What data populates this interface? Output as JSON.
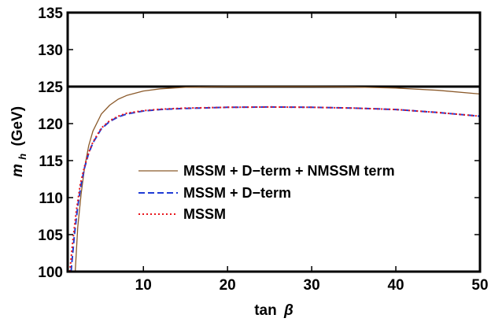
{
  "chart_data": {
    "type": "line",
    "xlabel": {
      "main": "tan",
      "symbol": "β"
    },
    "ylabel": {
      "main": "m",
      "sub": "h",
      "unit": "(GeV)"
    },
    "xlim": [
      1,
      50
    ],
    "ylim": [
      100,
      135
    ],
    "x_ticks": [
      10,
      20,
      30,
      40,
      50
    ],
    "y_ticks": [
      100,
      105,
      110,
      115,
      120,
      125,
      130,
      135
    ],
    "grid": false,
    "legend_position": "center-right",
    "reference_line": {
      "y": 125,
      "color": "#000000"
    },
    "series": [
      {
        "name": "MSSM + D−term + NMSSM term",
        "color": "#8B5A2B",
        "style": "solid",
        "x": [
          1.9,
          2.2,
          2.6,
          3.0,
          3.5,
          4.0,
          5.0,
          6.0,
          7.0,
          8.0,
          10.0,
          12.0,
          15.0,
          20.0,
          25.0,
          30.0,
          35.0,
          40.0,
          45.0,
          50.0
        ],
        "y": [
          100.0,
          106.0,
          110.5,
          114.0,
          117.0,
          119.0,
          121.3,
          122.5,
          123.3,
          123.8,
          124.4,
          124.7,
          124.9,
          125.0,
          125.0,
          125.0,
          124.95,
          124.8,
          124.5,
          124.0
        ]
      },
      {
        "name": "MSSM + D−term",
        "color": "#1f3bd6",
        "style": "dashed",
        "x": [
          1.4,
          1.8,
          2.2,
          2.6,
          3.0,
          3.5,
          4.0,
          5.0,
          6.0,
          7.0,
          8.0,
          10.0,
          12.0,
          15.0,
          20.0,
          25.0,
          30.0,
          35.0,
          40.0,
          45.0,
          50.0
        ],
        "y": [
          100.0,
          105.0,
          108.8,
          111.8,
          114.0,
          116.0,
          117.4,
          119.3,
          120.3,
          120.9,
          121.3,
          121.7,
          121.9,
          122.05,
          122.2,
          122.25,
          122.2,
          122.1,
          121.9,
          121.5,
          121.0
        ]
      },
      {
        "name": "MSSM",
        "color": "#e8151b",
        "style": "dotted",
        "x": [
          1.25,
          1.6,
          2.0,
          2.5,
          3.0,
          3.5,
          4.0,
          5.0,
          6.0,
          7.0,
          8.0,
          10.0,
          12.0,
          15.0,
          20.0,
          25.0,
          30.0,
          35.0,
          40.0,
          45.0,
          50.0
        ],
        "y": [
          100.0,
          104.0,
          108.0,
          111.8,
          114.2,
          116.1,
          117.5,
          119.4,
          120.4,
          121.0,
          121.4,
          121.75,
          121.95,
          122.1,
          122.2,
          122.25,
          122.2,
          122.1,
          121.9,
          121.5,
          121.0
        ]
      }
    ]
  }
}
